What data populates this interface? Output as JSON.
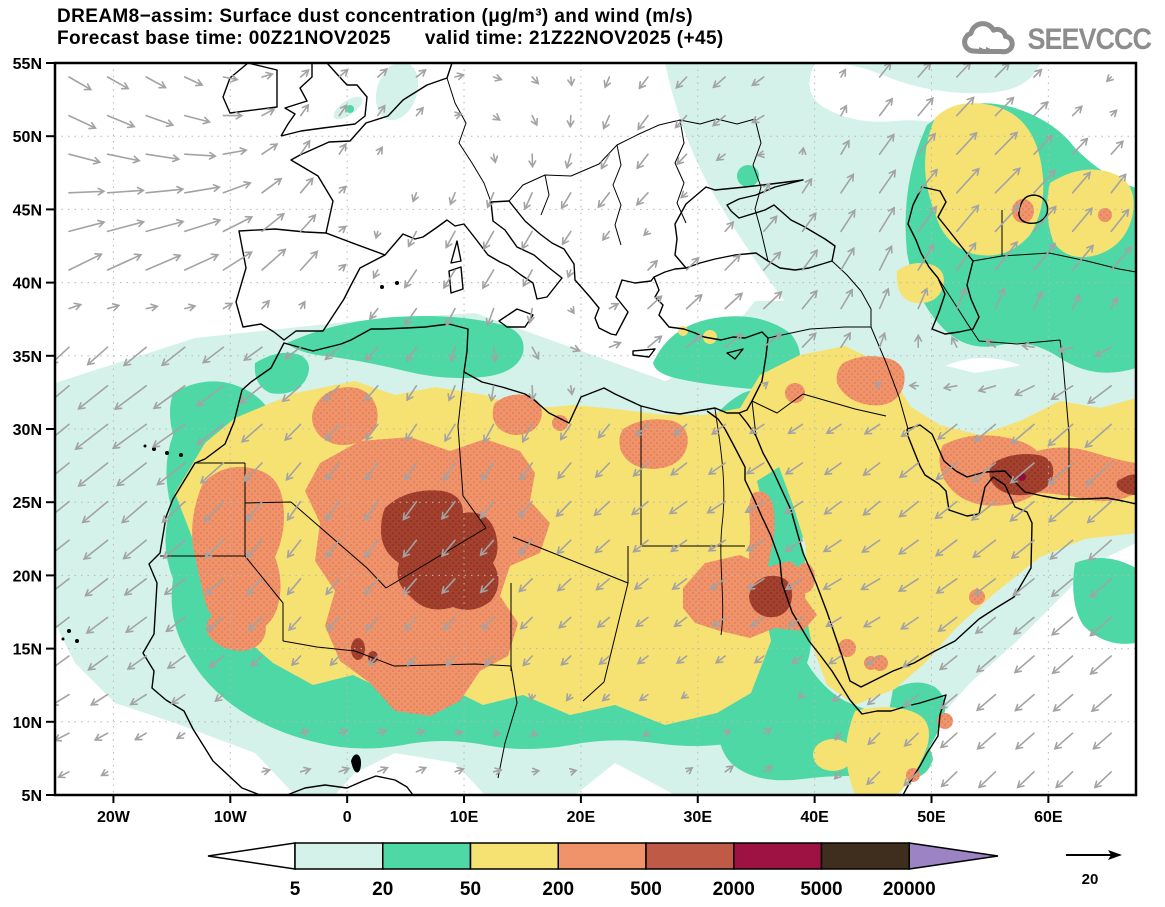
{
  "header": {
    "title_line1": "DREAM8−assim: Surface dust concentration (μg/m³) and wind (m/s)",
    "title_line2": "Forecast base time: 00Z21NOV2025      valid time: 21Z22NOV2025 (+45)",
    "logo_text": "SEEVCCC"
  },
  "chart_data": {
    "type": "contour_map",
    "title": "DREAM8−assim: Surface dust concentration (μg/m³) and wind (m/s)",
    "model": "DREAM8−assim",
    "variable": "Surface dust concentration",
    "units": "μg/m³",
    "wind_units": "m/s",
    "forecast_base_time": "00Z21NOV2025",
    "valid_time": "21Z22NOV2025",
    "forecast_hour": "+45",
    "x_axis": {
      "label": "longitude",
      "ticks": [
        {
          "label": "20W",
          "value": -20
        },
        {
          "label": "10W",
          "value": -10
        },
        {
          "label": "0",
          "value": 0
        },
        {
          "label": "10E",
          "value": 10
        },
        {
          "label": "20E",
          "value": 20
        },
        {
          "label": "30E",
          "value": 30
        },
        {
          "label": "40E",
          "value": 40
        },
        {
          "label": "50E",
          "value": 50
        },
        {
          "label": "60E",
          "value": 60
        }
      ],
      "range_deg": [
        -25,
        67.5
      ]
    },
    "y_axis": {
      "label": "latitude",
      "ticks": [
        {
          "label": "55N",
          "value": 55
        },
        {
          "label": "50N",
          "value": 50
        },
        {
          "label": "45N",
          "value": 45
        },
        {
          "label": "40N",
          "value": 40
        },
        {
          "label": "35N",
          "value": 35
        },
        {
          "label": "30N",
          "value": 30
        },
        {
          "label": "25N",
          "value": 25
        },
        {
          "label": "20N",
          "value": 20
        },
        {
          "label": "15N",
          "value": 15
        },
        {
          "label": "10N",
          "value": 10
        },
        {
          "label": "5N",
          "value": 5
        }
      ],
      "range_deg": [
        5,
        55
      ]
    },
    "colorbar": {
      "labels": [
        "5",
        "20",
        "50",
        "200",
        "500",
        "2000",
        "5000",
        "20000"
      ],
      "levels_ugm3": [
        5,
        20,
        50,
        200,
        500,
        2000,
        5000,
        20000
      ],
      "colors": [
        "#d4f2ea",
        "#4dd8a6",
        "#f6e173",
        "#f0926a",
        "#bf5a46",
        "#9d1242",
        "#3f2d1e"
      ],
      "under_color": "#ffffff",
      "over_color": "#9c83c3"
    },
    "wind_reference": {
      "label": "20",
      "value": 20,
      "units": "m/s"
    },
    "dust_maxima": [
      {
        "region": "central/southern Algeria (Sahara)",
        "range_ugm3": "2000–5000"
      },
      {
        "region": "Mali (Sahel)",
        "range_ugm3": "2000–5000"
      },
      {
        "region": "Mauritania / Western Sahara",
        "range_ugm3": "500–2000"
      },
      {
        "region": "eastern Sudan near Red Sea",
        "range_ugm3": "2000–5000"
      },
      {
        "region": "southern Iran / Strait of Hormuz",
        "range_ugm3": "2000–5000, local spot >5000"
      },
      {
        "region": "Kazakhstan / Caspian and Aral region",
        "range_ugm3": "200–500"
      },
      {
        "region": "broad Sahara–Sahel–Arabia belt",
        "range_ugm3": "50–200"
      }
    ],
    "wind_field": {
      "lons": [
        -25,
        -15,
        -5,
        5,
        15,
        25,
        35,
        45,
        55,
        65
      ],
      "lats": [
        55,
        50,
        45,
        40,
        35,
        30,
        25,
        20,
        15,
        10,
        5
      ],
      "u": [
        [
          8,
          6,
          3,
          4,
          3,
          -3,
          -5,
          4,
          5,
          -3
        ],
        [
          11,
          12,
          3,
          2,
          2,
          -4,
          -5,
          5,
          8,
          4
        ],
        [
          14,
          15,
          6,
          -2,
          -4,
          -5,
          4,
          6,
          10,
          6
        ],
        [
          12,
          13,
          8,
          -5,
          -4,
          5,
          7,
          4,
          8,
          8
        ],
        [
          -9,
          -12,
          -8,
          -4,
          3,
          5,
          7,
          2,
          -5,
          -8
        ],
        [
          -12,
          -13,
          -6,
          -4,
          -4,
          -5,
          -6,
          -6,
          -8,
          -10
        ],
        [
          -10,
          -9,
          -5,
          -5,
          -5,
          -6,
          -7,
          -6,
          -9,
          -9
        ],
        [
          -9,
          -8,
          -5,
          -5,
          -5,
          -5,
          -6,
          -7,
          -8,
          -8
        ],
        [
          -8,
          -7,
          -4,
          -4,
          -4,
          -4,
          -4,
          -5,
          -7,
          -8
        ],
        [
          -6,
          -5,
          3,
          3,
          2,
          -3,
          3,
          -4,
          -7,
          -7
        ],
        [
          -4,
          3,
          4,
          4,
          3,
          3,
          4,
          -5,
          -6,
          -6
        ]
      ],
      "v": [
        [
          -5,
          -4,
          2,
          3,
          -2,
          -4,
          -4,
          5,
          5,
          -3
        ],
        [
          -5,
          -3,
          5,
          4,
          -4,
          -6,
          -3,
          7,
          8,
          4
        ],
        [
          2,
          3,
          7,
          -5,
          -7,
          -5,
          5,
          9,
          10,
          8
        ],
        [
          7,
          6,
          9,
          -7,
          -7,
          5,
          7,
          9,
          11,
          9
        ],
        [
          -8,
          -9,
          -6,
          -5,
          -5,
          4,
          5,
          5,
          2,
          -5
        ],
        [
          -10,
          -9,
          -6,
          -6,
          -7,
          -5,
          -4,
          -4,
          -7,
          -9
        ],
        [
          -8,
          -8,
          -7,
          -7,
          -6,
          -5,
          -4,
          -5,
          -7,
          -8
        ],
        [
          -7,
          -6,
          -6,
          -6,
          -5,
          -4,
          -4,
          -4,
          -6,
          -7
        ],
        [
          -6,
          -5,
          -4,
          -4,
          -4,
          -3,
          -3,
          -3,
          -6,
          -7
        ],
        [
          -3,
          -3,
          1,
          1,
          -1,
          -2,
          2,
          -4,
          -6,
          -6
        ],
        [
          -2,
          1,
          1,
          2,
          1,
          2,
          3,
          -5,
          -6,
          -6
        ]
      ]
    },
    "grid": {
      "lat_step_deg": 5,
      "lon_step_deg": 10,
      "style": "dotted"
    }
  }
}
